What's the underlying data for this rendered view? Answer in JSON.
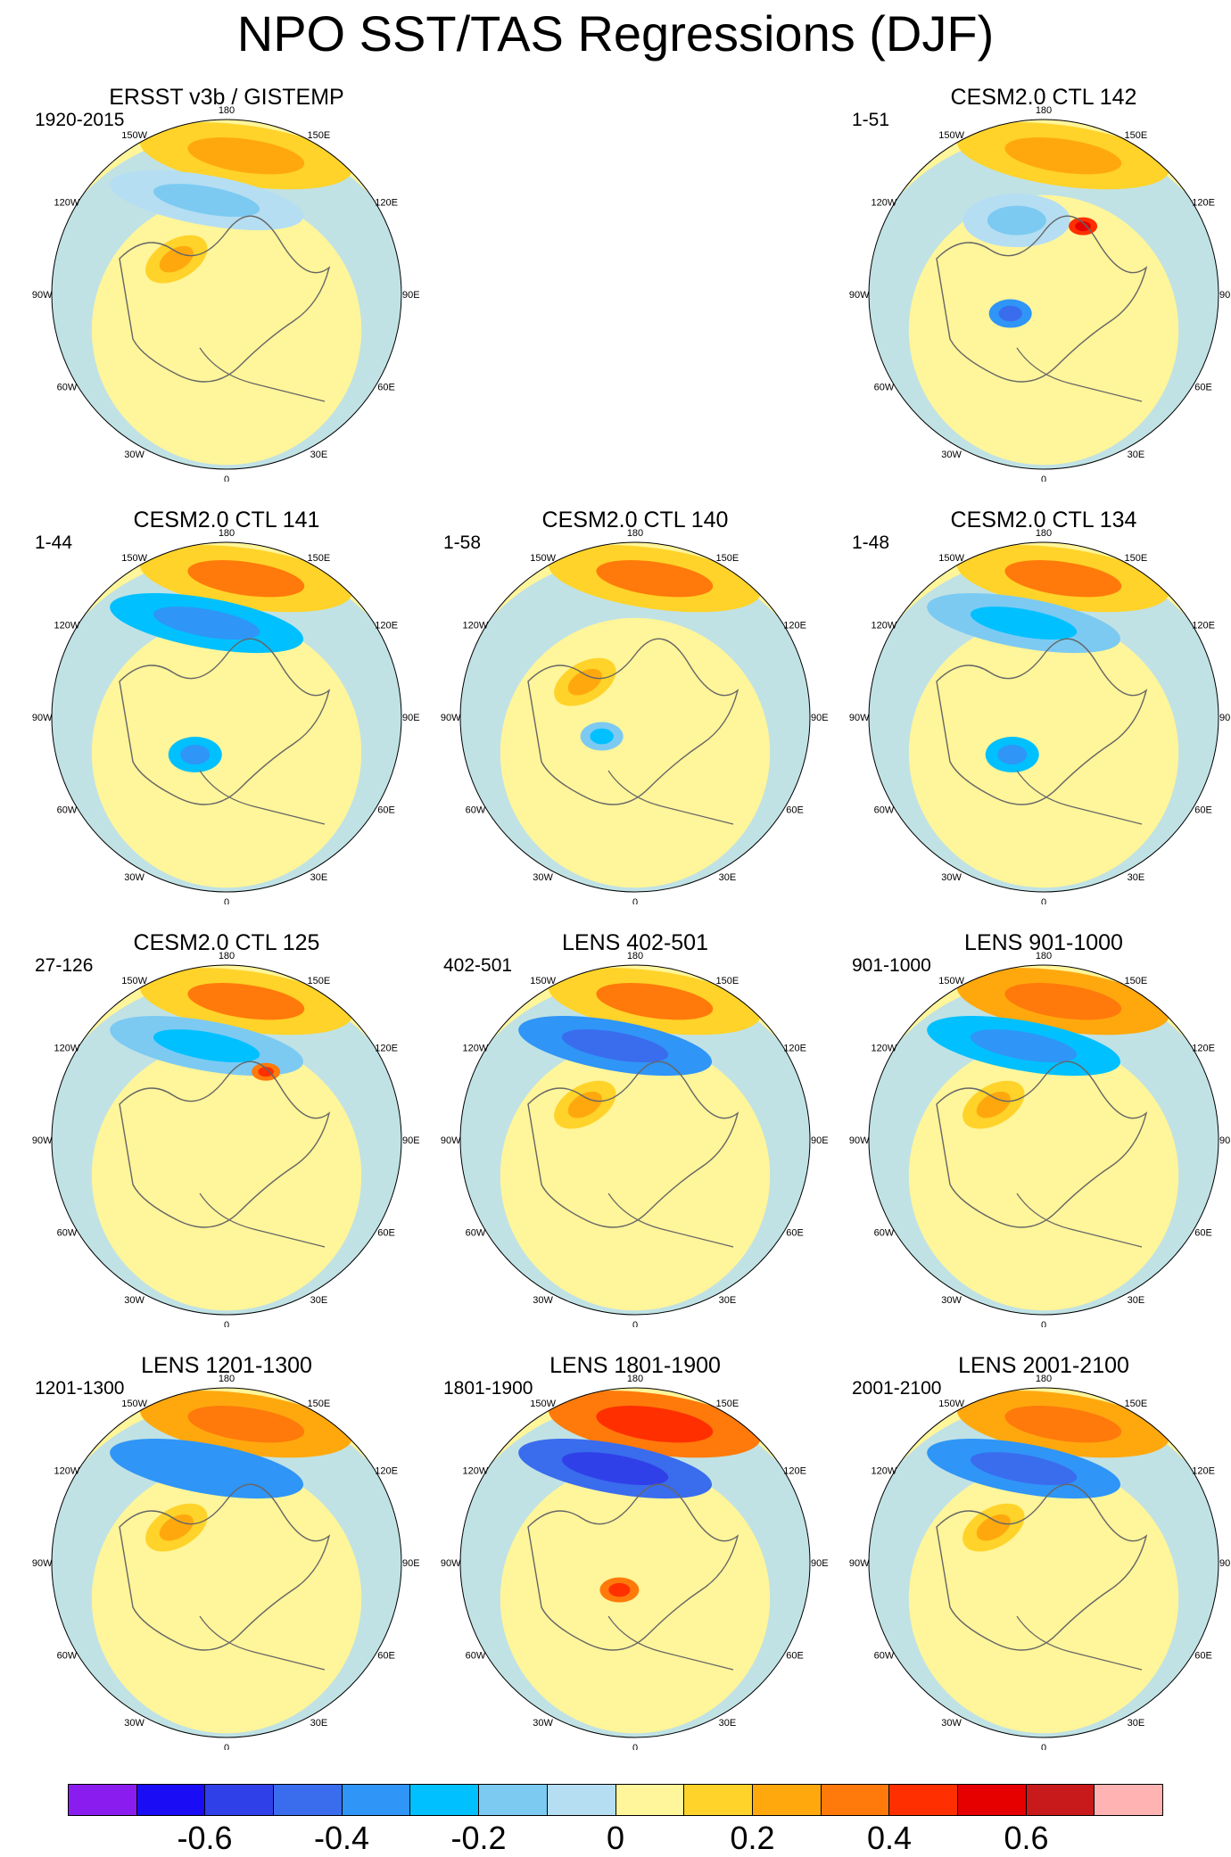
{
  "figure_title": "NPO SST/TAS Regressions (DJF)",
  "chart_data": {
    "type": "map",
    "projection": "north-polar-stereographic",
    "variable": "SST/TAS regression on NPO index",
    "season": "DJF",
    "colorbar": {
      "bounds": [
        -0.7,
        -0.6,
        -0.5,
        -0.4,
        -0.3,
        -0.2,
        -0.1,
        0,
        0.1,
        0.2,
        0.3,
        0.4,
        0.5,
        0.6,
        0.7
      ],
      "colors": [
        "#8a1cf0",
        "#1a0cf5",
        "#3040e8",
        "#3a6cee",
        "#2f95f7",
        "#00c0ff",
        "#7ccaf2",
        "#b5def2",
        "#fff59a",
        "#ffd329",
        "#ffa80e",
        "#ff7a0a",
        "#ff2f00",
        "#e60000",
        "#c81a1a",
        "#ffb3b3"
      ],
      "labels": [
        "-0.6",
        "-0.4",
        "-0.2",
        "0",
        "0.2",
        "0.4",
        "0.6"
      ],
      "label_values": [
        -0.6,
        -0.4,
        -0.2,
        0,
        0.2,
        0.4,
        0.6
      ]
    },
    "longitude_labels": [
      "180",
      "150E",
      "120E",
      "90E",
      "60E",
      "30E",
      "0",
      "30W",
      "60W",
      "90W",
      "120W",
      "150W"
    ],
    "panels": [
      {
        "title": "ERSST v3b / GISTEMP",
        "years": "1920-2015",
        "row": 0,
        "col": 0,
        "features": [
          {
            "kind": "positive",
            "region": "North Pacific band",
            "value": 0.25
          },
          {
            "kind": "negative",
            "region": "Gulf of Alaska / Aleutians",
            "value": -0.15
          },
          {
            "kind": "positive",
            "region": "Western Canada",
            "value": 0.25
          }
        ]
      },
      {
        "title": "CESM2.0 CTL 142",
        "years": "1-51",
        "row": 0,
        "col": 2,
        "features": [
          {
            "kind": "positive",
            "region": "North Pacific band",
            "value": 0.25
          },
          {
            "kind": "negative",
            "region": "Alaska",
            "value": -0.2
          },
          {
            "kind": "positive",
            "region": "Bering Strait hotspot",
            "value": 0.55
          },
          {
            "kind": "negative",
            "region": "Hudson Bay",
            "value": -0.45
          }
        ]
      },
      {
        "title": "CESM2.0 CTL 141",
        "years": "1-44",
        "row": 1,
        "col": 0,
        "features": [
          {
            "kind": "positive",
            "region": "North Pacific band",
            "value": 0.3
          },
          {
            "kind": "negative",
            "region": "Gulf of Alaska / Aleutians",
            "value": -0.35
          },
          {
            "kind": "negative",
            "region": "Labrador Sea",
            "value": -0.35
          }
        ]
      },
      {
        "title": "CESM2.0 CTL 140",
        "years": "1-58",
        "row": 1,
        "col": 1,
        "features": [
          {
            "kind": "positive",
            "region": "North Pacific band",
            "value": 0.3
          },
          {
            "kind": "positive",
            "region": "Western Canada",
            "value": 0.25
          },
          {
            "kind": "negative",
            "region": "Hudson Bay",
            "value": -0.25
          }
        ]
      },
      {
        "title": "CESM2.0 CTL 134",
        "years": "1-48",
        "row": 1,
        "col": 2,
        "features": [
          {
            "kind": "positive",
            "region": "North Pacific band",
            "value": 0.3
          },
          {
            "kind": "negative",
            "region": "Gulf of Alaska / Aleutians",
            "value": -0.3
          },
          {
            "kind": "negative",
            "region": "Labrador Sea",
            "value": -0.35
          }
        ]
      },
      {
        "title": "CESM2.0 CTL 125",
        "years": "27-126",
        "row": 2,
        "col": 0,
        "features": [
          {
            "kind": "positive",
            "region": "North Pacific band",
            "value": 0.3
          },
          {
            "kind": "negative",
            "region": "Gulf of Alaska / Aleutians",
            "value": -0.3
          },
          {
            "kind": "positive",
            "region": "Bering Strait hotspot",
            "value": 0.45
          }
        ]
      },
      {
        "title": "LENS 402-501",
        "years": "402-501",
        "row": 2,
        "col": 1,
        "features": [
          {
            "kind": "positive",
            "region": "North Pacific band",
            "value": 0.3
          },
          {
            "kind": "negative",
            "region": "Gulf of Alaska / Aleutians",
            "value": -0.5
          },
          {
            "kind": "positive",
            "region": "Western Canada",
            "value": 0.25
          }
        ]
      },
      {
        "title": "LENS 901-1000",
        "years": "901-1000",
        "row": 2,
        "col": 2,
        "features": [
          {
            "kind": "positive",
            "region": "North Pacific band",
            "value": 0.35
          },
          {
            "kind": "negative",
            "region": "Gulf of Alaska / Aleutians",
            "value": -0.35
          },
          {
            "kind": "positive",
            "region": "Western Canada",
            "value": 0.25
          }
        ]
      },
      {
        "title": "LENS 1201-1300",
        "years": "1201-1300",
        "row": 3,
        "col": 0,
        "features": [
          {
            "kind": "positive",
            "region": "North Pacific band",
            "value": 0.35
          },
          {
            "kind": "negative",
            "region": "Gulf of Alaska / Aleutians",
            "value": -0.4
          },
          {
            "kind": "positive",
            "region": "Western Canada",
            "value": 0.25
          }
        ]
      },
      {
        "title": "LENS 1801-1900",
        "years": "1801-1900",
        "row": 3,
        "col": 1,
        "features": [
          {
            "kind": "positive",
            "region": "North Pacific band",
            "value": 0.45
          },
          {
            "kind": "negative",
            "region": "Gulf of Alaska / Aleutians",
            "value": -0.55
          },
          {
            "kind": "positive",
            "region": "Hudson Bay hotspot",
            "value": 0.45
          }
        ]
      },
      {
        "title": "LENS 2001-2100",
        "years": "2001-2100",
        "row": 3,
        "col": 2,
        "features": [
          {
            "kind": "positive",
            "region": "North Pacific band",
            "value": 0.35
          },
          {
            "kind": "negative",
            "region": "Gulf of Alaska / Aleutians",
            "value": -0.45
          },
          {
            "kind": "positive",
            "region": "Western Canada",
            "value": 0.25
          }
        ]
      }
    ]
  }
}
